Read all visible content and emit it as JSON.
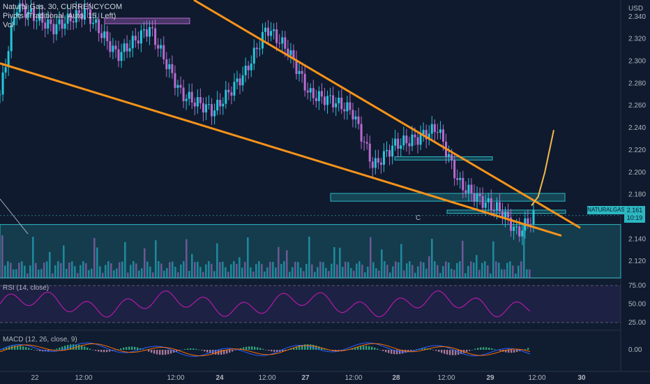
{
  "legend": {
    "symbol": "Natural Gas, 30, CURRENCYCOM",
    "pivots": "Pivots (Traditional, Auto, 15, Left)",
    "volume": "Vol"
  },
  "price_axis": {
    "currency": "USD",
    "ticks": [
      "2.340",
      "2.320",
      "2.300",
      "2.280",
      "2.260",
      "2.240",
      "2.220",
      "2.200",
      "2.180",
      "2.140",
      "2.120"
    ]
  },
  "price_label": {
    "symbol": "NATURALGAS",
    "price": "2.161",
    "countdown": "10:19"
  },
  "time_axis": {
    "ticks": [
      "22",
      "12:00",
      "12:00",
      "24",
      "12:00",
      "27",
      "12:00",
      "28",
      "12:00",
      "29",
      "12:00",
      "30"
    ]
  },
  "rsi": {
    "title": "RSI (14, close)",
    "ticks": [
      "75.00",
      "50.00",
      "25.00"
    ]
  },
  "macd": {
    "title": "MACD (12, 26, close, 9)",
    "ticks": [
      "0.00"
    ]
  },
  "annotation": {
    "wave_label": "C"
  },
  "colors": {
    "background": "#0f1a2e",
    "bull_candle": "#26c6da",
    "bear_candle": "#b86bd0",
    "trendline": "#f7931a",
    "zone": "#2bb7c0",
    "rsi_line": "#b21ba8",
    "macd_line": "#2962ff",
    "signal_line": "#ff6d00"
  },
  "chart_data": {
    "type": "candlestick",
    "symbol": "Natural Gas",
    "timeframe": "30",
    "y_range": [
      2.105,
      2.355
    ],
    "last_price": 2.161,
    "price_path": [
      [
        0,
        2.27
      ],
      [
        0.03,
        2.35
      ],
      [
        0.1,
        2.33
      ],
      [
        0.16,
        2.345
      ],
      [
        0.22,
        2.305
      ],
      [
        0.28,
        2.33
      ],
      [
        0.34,
        2.27
      ],
      [
        0.4,
        2.255
      ],
      [
        0.46,
        2.29
      ],
      [
        0.5,
        2.33
      ],
      [
        0.54,
        2.31
      ],
      [
        0.58,
        2.27
      ],
      [
        0.62,
        2.265
      ],
      [
        0.66,
        2.255
      ],
      [
        0.7,
        2.205
      ],
      [
        0.74,
        2.225
      ],
      [
        0.78,
        2.23
      ],
      [
        0.82,
        2.24
      ],
      [
        0.86,
        2.19
      ],
      [
        0.9,
        2.175
      ],
      [
        0.94,
        2.165
      ],
      [
        0.97,
        2.145
      ],
      [
        1.0,
        2.161
      ]
    ],
    "trendlines": [
      {
        "from": [
          0.0,
          2.298
        ],
        "to": [
          1.0,
          2.143
        ]
      },
      {
        "from": [
          0.28,
          2.355
        ],
        "to": [
          1.0,
          2.15
        ]
      }
    ],
    "projection": [
      [
        0.0,
        2.17
      ],
      [
        0.3,
        2.178
      ],
      [
        0.6,
        2.2
      ],
      [
        1.0,
        2.238
      ]
    ],
    "zones": [
      {
        "y_top": 2.181,
        "y_bottom": 2.174
      },
      {
        "y_top": 2.214,
        "y_bottom": 2.211
      },
      {
        "y_top": 2.166,
        "y_bottom": 2.163
      },
      {
        "y_top": 2.153,
        "y_bottom": 2.105
      }
    ],
    "rsi_range": [
      25,
      75
    ],
    "rsi_levels": [
      75,
      50,
      25
    ]
  }
}
